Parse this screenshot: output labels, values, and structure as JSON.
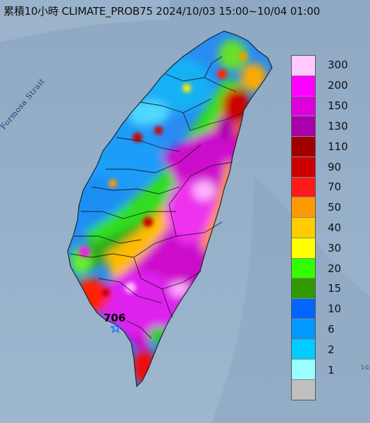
{
  "title": "累積10小時 CLIMATE_PROB75 2024/10/03 15:00~10/04 01:00",
  "strait_label": "Formosa Strait",
  "max_value": "706",
  "corner_fragment": "1©",
  "legend": {
    "items": [
      {
        "label": "300",
        "color": "#ffc8ff"
      },
      {
        "label": "200",
        "color": "#ff00ff"
      },
      {
        "label": "150",
        "color": "#dd00dd"
      },
      {
        "label": "130",
        "color": "#aa00aa"
      },
      {
        "label": "110",
        "color": "#a00000"
      },
      {
        "label": "90",
        "color": "#cc0000"
      },
      {
        "label": "70",
        "color": "#ff1a1a"
      },
      {
        "label": "50",
        "color": "#ff9900"
      },
      {
        "label": "40",
        "color": "#ffcc00"
      },
      {
        "label": "30",
        "color": "#ffff00"
      },
      {
        "label": "20",
        "color": "#33ff00"
      },
      {
        "label": "15",
        "color": "#339900"
      },
      {
        "label": "10",
        "color": "#0066ff"
      },
      {
        "label": "6",
        "color": "#0099ff"
      },
      {
        "label": "2",
        "color": "#00ccff"
      },
      {
        "label": "1",
        "color": "#99ffff"
      },
      {
        "label": "",
        "color": "#c0c0c0"
      }
    ]
  },
  "colors": {
    "sea": "#93adc7",
    "county_border": "#1a1a1a"
  }
}
